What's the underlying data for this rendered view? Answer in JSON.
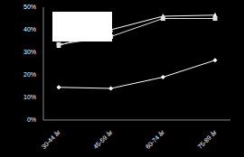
{
  "chart_data": {
    "type": "line",
    "categories": [
      "30-44 år",
      "45-59 år",
      "60-74 år",
      "75-89 år"
    ],
    "series": [
      {
        "color": "#ffffff",
        "marker": "triangle",
        "values": [
          33,
          40,
          46,
          46.5
        ]
      },
      {
        "color": "#e0e0e0",
        "marker": "square",
        "values": [
          33.5,
          37,
          45,
          45
        ]
      },
      {
        "color": "#ffffff",
        "marker": "diamond",
        "values": [
          14.5,
          14,
          19,
          26.5
        ]
      }
    ],
    "ylim": [
      0,
      50
    ],
    "yticks": [
      {
        "value": 0,
        "label": "0%"
      },
      {
        "value": 10,
        "label": "10%"
      },
      {
        "value": 20,
        "label": "20%"
      },
      {
        "value": 30,
        "label": "30%"
      },
      {
        "value": 40,
        "label": "40%"
      },
      {
        "value": 50,
        "label": "50%"
      }
    ],
    "grid": false
  }
}
